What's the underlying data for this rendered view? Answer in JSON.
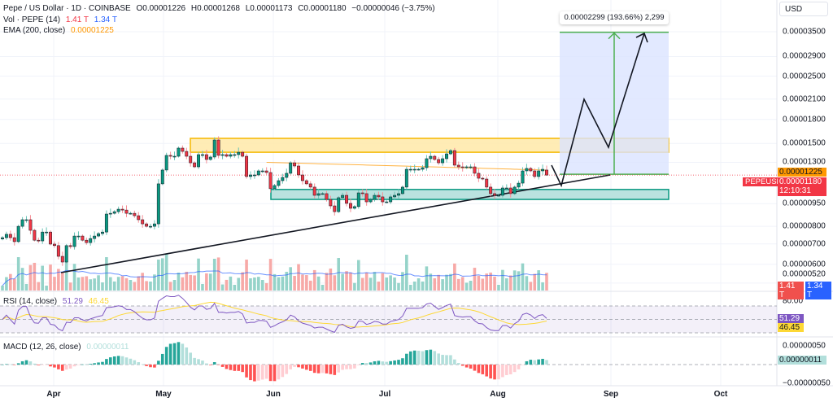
{
  "header": {
    "symbol_line": "Pepe / US Dollar · 1D · COINBASE",
    "open": "O0.00001226",
    "high": "H0.00001268",
    "low": "L0.00001173",
    "close": "C0.00001180",
    "change": "−0.00000046 (−3.75%)",
    "vol_label": "Vol · PEPE (14)",
    "vol_value_1": "1.41 T",
    "vol_value_2": "1.34 T",
    "ema_label": "EMA (200, close)",
    "ema_value": "0.00001225",
    "rsi_label": "RSI (14, close)",
    "rsi_value": "51.29",
    "rsi_ma_value": "46.45",
    "macd_label": "MACD (12, 26, close)",
    "macd_value": "0.00000011"
  },
  "currency_button": "USD",
  "badges": {
    "ema": "0.00001225",
    "symbol_tag": "PEPEUSD",
    "last_price": "0.00001180",
    "countdown": "12:10:31",
    "vol_1": "1.41 T",
    "vol_2": "1.34 T",
    "rsi": "51.29",
    "rsi_ma": "46.45",
    "macd": "0.00000011"
  },
  "measure_label": "0.00002299 (193.66%) 2,299",
  "colors": {
    "up": "#089981",
    "down": "#f23645",
    "ema": "#ff9800",
    "rsi": "#7e57c2",
    "rsi_ma": "#fdd835",
    "vol_ma": "#2962ff",
    "resistance_zone": "#ffe9a8",
    "support_zone": "#b2dfdb",
    "projection": "#dbe4ff",
    "target": "#4caf50"
  },
  "chart_data": {
    "type": "candlestick",
    "title": "Pepe / US Dollar · 1D · COINBASE",
    "y_scale": "log",
    "price_unit": 1e-08,
    "price_ticks": [
      "0.00003500",
      "0.00002900",
      "0.00002500",
      "0.00002100",
      "0.00001800",
      "0.00001500",
      "0.00001300",
      "0.00000950",
      "0.00000800",
      "0.00000700",
      "0.00000600",
      "0.00000520"
    ],
    "x_ticks": [
      "Apr",
      "May",
      "Jun",
      "Jul",
      "Aug",
      "Sep",
      "Oct"
    ],
    "close": [
      734,
      753,
      734,
      712,
      800,
      841,
      841,
      776,
      720,
      716,
      766,
      766,
      699,
      691,
      637,
      610,
      691,
      686,
      743,
      743,
      720,
      707,
      729,
      743,
      757,
      766,
      878,
      883,
      894,
      911,
      905,
      883,
      883,
      867,
      841,
      815,
      800,
      800,
      815,
      1104,
      1226,
      1370,
      1361,
      1361,
      1448,
      1412,
      1361,
      1295,
      1256,
      1378,
      1378,
      1328,
      1353,
      1540,
      1370,
      1378,
      1361,
      1378,
      1378,
      1403,
      1361,
      1167,
      1181,
      1181,
      1218,
      1218,
      1203,
      1064,
      1090,
      1131,
      1159,
      1196,
      1295,
      1264,
      1181,
      1131,
      1104,
      1077,
      1012,
      1025,
      1025,
      981,
      934,
      894,
      994,
      1012,
      952,
      917,
      929,
      1031,
      1025,
      963,
      981,
      1012,
      1000,
      963,
      963,
      1000,
      1012,
      1025,
      1077,
      1233,
      1233,
      1233,
      1233,
      1248,
      1336,
      1361,
      1328,
      1295,
      1336,
      1386,
      1421,
      1272,
      1256,
      1248,
      1256,
      1256,
      1196,
      1152,
      1145,
      1077,
      1025,
      1012,
      1012,
      1070,
      1070,
      1025,
      1077,
      1110,
      1218,
      1241,
      1218,
      1167,
      1218,
      1233,
      1180
    ],
    "last_candle": {
      "open": 1226,
      "high": 1268,
      "low": 1173,
      "close": 1180
    },
    "ema_200": {
      "start": 1300,
      "end": 1225
    },
    "rsi_levels": [
      70,
      50,
      30
    ],
    "rsi_axis_tick": "80.00",
    "macd_ticks": [
      "0.00000050",
      "−0.00000050"
    ],
    "zones": {
      "resistance": {
        "top": 1559,
        "bottom": 1403
      },
      "support": {
        "top": 1058,
        "bottom": 981
      }
    },
    "target": {
      "from": 1187,
      "to": 3486
    }
  }
}
